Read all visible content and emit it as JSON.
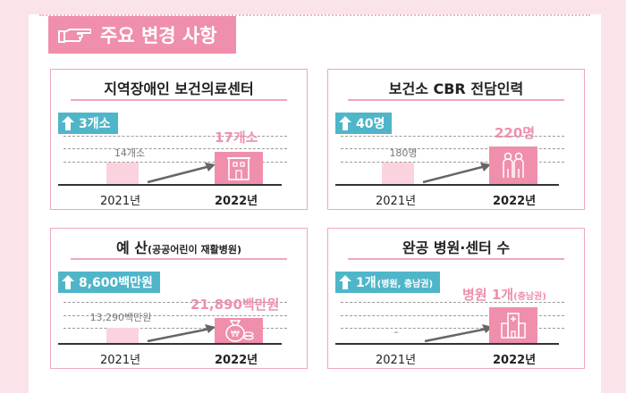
{
  "header": {
    "title": "주요 변경 사항",
    "icon": "pointing-hand-icon"
  },
  "colors": {
    "pink": "#ef8fab",
    "light_pink": "#fbd3de",
    "teal": "#4fb6c9",
    "background": "#fbe3ea"
  },
  "cards": [
    {
      "title": "지역장애인 보건의료센터",
      "badge": "3개소",
      "old_value": "14개소",
      "new_value": "17개소",
      "year_old": "2021년",
      "year_new": "2022년",
      "icon": "building-icon"
    },
    {
      "title": "보건소 CBR 전담인력",
      "badge": "40명",
      "old_value": "180명",
      "new_value": "220명",
      "year_old": "2021년",
      "year_new": "2022년",
      "icon": "people-icon"
    },
    {
      "title": "예 산",
      "title_note": "(공공어린이 재활병원)",
      "badge": "8,600백만원",
      "old_value": "13,290백만원",
      "new_value": "21,890백만원",
      "year_old": "2021년",
      "year_new": "2022년",
      "icon": "money-bag-icon"
    },
    {
      "title": "완공 병원·센터 수",
      "badge": "1개",
      "badge_note": "(병원, 충남권)",
      "old_value": "–",
      "new_value": "병원 1개",
      "new_value_note": "(충남권)",
      "year_old": "2021년",
      "year_new": "2022년",
      "icon": "hospital-icon"
    }
  ]
}
